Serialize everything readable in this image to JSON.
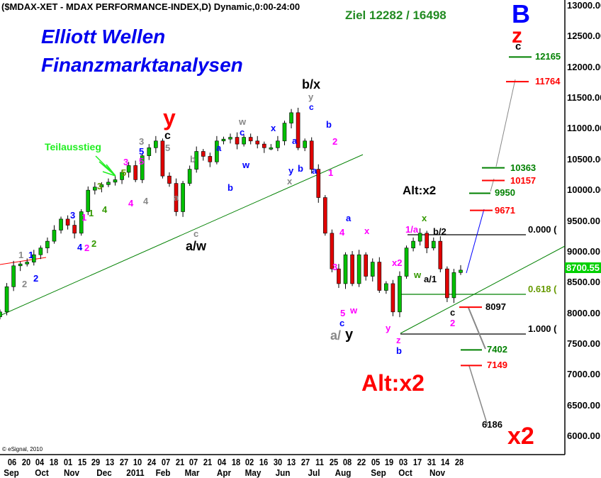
{
  "header": {
    "title": "($MDAX-XET - MDAX PERFORMANCE-INDEX,D) Dynamic,0:00-24:00",
    "brand_line1": "Elliott Wellen",
    "brand_line2": "Finanzmarktanalysen",
    "target": "Ziel 12282 / 16498",
    "copyright": "© eSignal, 2010"
  },
  "chart_data": {
    "type": "candlestick",
    "title": "($MDAX-XET - MDAX PERFORMANCE-INDEX,D) Dynamic,0:00-24:00",
    "ylim": [
      6000,
      13000
    ],
    "y_ticks": [
      "13000.00",
      "12500.00",
      "12000.00",
      "11500.00",
      "11000.00",
      "10500.00",
      "10000.00",
      "9500.00",
      "9000.00",
      "8500.00",
      "8000.00",
      "7500.00",
      "7000.00",
      "6500.00",
      "6000.00"
    ],
    "last_price": "8700.55",
    "day_ticks": [
      "06",
      "20",
      "04",
      "18",
      "01",
      "15",
      "29",
      "13",
      "27",
      "10",
      "24",
      "07",
      "21",
      "07",
      "21",
      "04",
      "18",
      "02",
      "16",
      "30",
      "13",
      "27",
      "11",
      "25",
      "08",
      "22",
      "05",
      "19",
      "03",
      "17",
      "31",
      "14",
      "28"
    ],
    "month_ticks": [
      "Sep",
      "Oct",
      "Nov",
      "Dec",
      "2011",
      "Feb",
      "Mar",
      "Apr",
      "May",
      "Jun",
      "Jul",
      "Aug",
      "Sep",
      "Oct",
      "Nov"
    ],
    "closes": [
      8020,
      8430,
      8770,
      8800,
      8830,
      8950,
      9060,
      9170,
      9350,
      9530,
      9430,
      9300,
      9650,
      10000,
      10050,
      10090,
      10130,
      10170,
      10290,
      10400,
      10170,
      10560,
      10690,
      10800,
      10230,
      10110,
      9650,
      10110,
      10340,
      10630,
      10550,
      10460,
      10800,
      10830,
      10860,
      10750,
      10860,
      10800,
      10750,
      10690,
      10690,
      10800,
      11090,
      11260,
      10690,
      10800,
      10340,
      9880,
      9300,
      8720,
      8480,
      8950,
      8480,
      8950,
      8600,
      8830,
      8370,
      8480,
      8020,
      8600,
      9060,
      9170,
      9300,
      9060,
      9170,
      8720,
      8250,
      8660,
      8700
    ],
    "target_levels": [
      {
        "value": "12165",
        "color": "#008000"
      },
      {
        "value": "11764",
        "color": "#ff0000"
      },
      {
        "value": "10363",
        "color": "#008000"
      },
      {
        "value": "10157",
        "color": "#ff0000"
      },
      {
        "value": "9950",
        "color": "#008000"
      },
      {
        "value": "9671",
        "color": "#ff0000"
      },
      {
        "value": "8097",
        "color": "#000000"
      },
      {
        "value": "7402",
        "color": "#008000"
      },
      {
        "value": "7149",
        "color": "#ff0000"
      },
      {
        "value": "6186",
        "color": "#000000"
      }
    ],
    "fib_levels": [
      {
        "label": "0.000 (",
        "color": "#000000"
      },
      {
        "label": "0.618 (",
        "color": "#008000"
      },
      {
        "label": "1.000 (",
        "color": "#000000"
      }
    ],
    "annotations": [
      {
        "text": "B",
        "color": "#0000ff"
      },
      {
        "text": "z",
        "color": "#ff0000"
      },
      {
        "text": "c",
        "color": "#000000"
      },
      {
        "text": "x2",
        "color": "#ff0000"
      },
      {
        "text": "Alt:x2",
        "color": "#000000"
      },
      {
        "text": "Alt:x2",
        "color": "#ff0000"
      },
      {
        "text": "Teilausstieg",
        "color": "#22ee22"
      },
      {
        "text": "y",
        "color": "#ff0000"
      },
      {
        "text": "c",
        "color": "#000000"
      },
      {
        "text": "5",
        "color": "#888888"
      },
      {
        "text": "a/w",
        "color": "#000000"
      },
      {
        "text": "c",
        "color": "#888888"
      },
      {
        "text": "a",
        "color": "#888888"
      },
      {
        "text": "b",
        "color": "#888888"
      },
      {
        "text": "b/x",
        "color": "#000000"
      },
      {
        "text": "y",
        "color": "#888888"
      },
      {
        "text": "c",
        "color": "#0000ff"
      },
      {
        "text": "a/",
        "color": "#888888"
      },
      {
        "text": "y",
        "color": "#000000"
      },
      {
        "text": "1",
        "color": "#888888"
      },
      {
        "text": "1",
        "color": "#0000ff"
      },
      {
        "text": "2",
        "color": "#888888"
      },
      {
        "text": "2",
        "color": "#0000ff"
      },
      {
        "text": "3",
        "color": "#0000ff"
      },
      {
        "text": "1",
        "color": "#ff00ff"
      },
      {
        "text": "1",
        "color": "#339900"
      },
      {
        "text": "4",
        "color": "#0000ff"
      },
      {
        "text": "2",
        "color": "#ff00ff"
      },
      {
        "text": "2",
        "color": "#339900"
      },
      {
        "text": "3",
        "color": "#669900"
      },
      {
        "text": "4",
        "color": "#339900"
      },
      {
        "text": "5",
        "color": "#669900"
      },
      {
        "text": "3",
        "color": "#ff00ff"
      },
      {
        "text": "3",
        "color": "#888888"
      },
      {
        "text": "5",
        "color": "#0000ff"
      },
      {
        "text": "5",
        "color": "#ff00ff"
      },
      {
        "text": "4",
        "color": "#ff00ff"
      },
      {
        "text": "4",
        "color": "#888888"
      },
      {
        "text": "w",
        "color": "#888888"
      },
      {
        "text": "c",
        "color": "#0000ff"
      },
      {
        "text": "a",
        "color": "#0000ff"
      },
      {
        "text": "w",
        "color": "#0000ff"
      },
      {
        "text": "b",
        "color": "#0000ff"
      },
      {
        "text": "x",
        "color": "#0000ff"
      },
      {
        "text": "a",
        "color": "#0000ff"
      },
      {
        "text": "y",
        "color": "#0000ff"
      },
      {
        "text": "b",
        "color": "#0000ff"
      },
      {
        "text": "x",
        "color": "#888888"
      },
      {
        "text": "a",
        "color": "#0000ff"
      },
      {
        "text": "b",
        "color": "#0000ff"
      },
      {
        "text": "2",
        "color": "#ff00ff"
      },
      {
        "text": "1",
        "color": "#ff00ff"
      },
      {
        "text": "a",
        "color": "#0000ff"
      },
      {
        "text": "4",
        "color": "#ff00ff"
      },
      {
        "text": "3",
        "color": "#ff00ff"
      },
      {
        "text": "x",
        "color": "#ff00ff"
      },
      {
        "text": "w",
        "color": "#ff00ff"
      },
      {
        "text": "5",
        "color": "#ff00ff"
      },
      {
        "text": "c",
        "color": "#0000ff"
      },
      {
        "text": "y",
        "color": "#ff00ff"
      },
      {
        "text": "x2",
        "color": "#ff00ff"
      },
      {
        "text": "z",
        "color": "#ff00ff"
      },
      {
        "text": "b",
        "color": "#0000ff"
      },
      {
        "text": "1/a",
        "color": "#ff00ff"
      },
      {
        "text": "x",
        "color": "#339900"
      },
      {
        "text": "b/2",
        "color": "#000000"
      },
      {
        "text": "w",
        "color": "#339900"
      },
      {
        "text": "a/1",
        "color": "#000000"
      },
      {
        "text": "c",
        "color": "#000000"
      },
      {
        "text": "2",
        "color": "#ff00ff"
      }
    ]
  }
}
